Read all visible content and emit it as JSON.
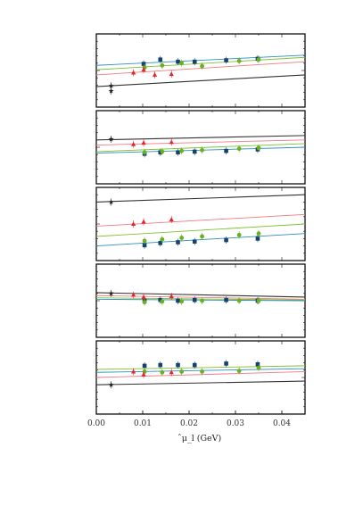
{
  "chart_data": {
    "type": "scatter",
    "xlabel": "̂μ_l (GeV)",
    "x_ticks": [
      "0.00",
      "0.01",
      "0.02",
      "0.03",
      "0.04"
    ],
    "x_tick_values": [
      0,
      0.01,
      0.02,
      0.03,
      0.04
    ],
    "xlim": [
      0,
      0.045
    ],
    "grid": false,
    "colors": {
      "blue": "#16416e",
      "green": "#6ab023",
      "red": "#e8202a",
      "black": "#222222",
      "green_line": "#7fc030",
      "blue_line": "#2b8fbf",
      "red_line": "#f07a80",
      "black_line": "#333333"
    },
    "panels": [
      {
        "ylim": [
          0,
          1
        ],
        "fits": [
          {
            "color": "black_line",
            "y0": 0.28,
            "y1": 0.44
          },
          {
            "color": "red_line",
            "y0": 0.44,
            "y1": 0.62
          },
          {
            "color": "green_line",
            "y0": 0.51,
            "y1": 0.68
          },
          {
            "color": "blue_line",
            "y0": 0.57,
            "y1": 0.71
          }
        ],
        "series": [
          {
            "marker": "square",
            "color": "blue",
            "x": [
              0.0102,
              0.0138,
              0.0176,
              0.0212,
              0.028,
              0.0348
            ],
            "y": [
              0.59,
              0.65,
              0.62,
              0.62,
              0.64,
              0.66
            ]
          },
          {
            "marker": "circle",
            "color": "green",
            "x": [
              0.0104,
              0.0142,
              0.0184,
              0.0228,
              0.0308,
              0.035
            ],
            "y": [
              0.54,
              0.57,
              0.6,
              0.56,
              0.63,
              0.65
            ]
          },
          {
            "marker": "triangle",
            "color": "red",
            "x": [
              0.008,
              0.0102,
              0.0126,
              0.0162
            ],
            "y": [
              0.47,
              0.51,
              0.44,
              0.45
            ]
          },
          {
            "marker": "star",
            "color": "black",
            "x": [
              0.0032,
              0.0032
            ],
            "y": [
              0.29,
              0.22
            ]
          }
        ]
      },
      {
        "ylim": [
          0,
          1
        ],
        "fits": [
          {
            "color": "black_line",
            "y0": 0.6,
            "y1": 0.66
          },
          {
            "color": "red_line",
            "y0": 0.53,
            "y1": 0.6
          },
          {
            "color": "green_line",
            "y0": 0.44,
            "y1": 0.55
          },
          {
            "color": "blue_line",
            "y0": 0.42,
            "y1": 0.5
          }
        ],
        "series": [
          {
            "marker": "square",
            "color": "blue",
            "x": [
              0.0104,
              0.0138,
              0.0176,
              0.0212,
              0.028,
              0.0348
            ],
            "y": [
              0.41,
              0.43,
              0.43,
              0.44,
              0.45,
              0.47
            ]
          },
          {
            "marker": "circle",
            "color": "green",
            "x": [
              0.0104,
              0.0142,
              0.0184,
              0.0228,
              0.0308,
              0.035
            ],
            "y": [
              0.43,
              0.44,
              0.45,
              0.46,
              0.48,
              0.49
            ]
          },
          {
            "marker": "triangle",
            "color": "red",
            "x": [
              0.008,
              0.0102,
              0.0162
            ],
            "y": [
              0.54,
              0.56,
              0.57
            ]
          },
          {
            "marker": "star",
            "color": "black",
            "x": [
              0.0032
            ],
            "y": [
              0.61
            ]
          }
        ]
      },
      {
        "ylim": [
          0,
          1
        ],
        "fits": [
          {
            "color": "black_line",
            "y0": 0.8,
            "y1": 0.9
          },
          {
            "color": "red_line",
            "y0": 0.47,
            "y1": 0.63
          },
          {
            "color": "green_line",
            "y0": 0.33,
            "y1": 0.5
          },
          {
            "color": "blue_line",
            "y0": 0.2,
            "y1": 0.37
          }
        ],
        "series": [
          {
            "marker": "square",
            "color": "blue",
            "x": [
              0.0104,
              0.0138,
              0.0176,
              0.0212,
              0.028,
              0.0348
            ],
            "y": [
              0.21,
              0.24,
              0.25,
              0.26,
              0.28,
              0.3
            ]
          },
          {
            "marker": "circle",
            "color": "green",
            "x": [
              0.0104,
              0.0142,
              0.0184,
              0.0228,
              0.0308,
              0.035
            ],
            "y": [
              0.27,
              0.29,
              0.31,
              0.33,
              0.35,
              0.37
            ]
          },
          {
            "marker": "triangle",
            "color": "red",
            "x": [
              0.008,
              0.0102,
              0.0162
            ],
            "y": [
              0.5,
              0.53,
              0.56
            ]
          },
          {
            "marker": "star",
            "color": "black",
            "x": [
              0.0032
            ],
            "y": [
              0.8
            ]
          }
        ]
      },
      {
        "ylim": [
          0,
          1
        ],
        "fits": [
          {
            "color": "black_line",
            "y0": 0.61,
            "y1": 0.55
          },
          {
            "color": "red_line",
            "y0": 0.57,
            "y1": 0.52
          },
          {
            "color": "green_line",
            "y0": 0.54,
            "y1": 0.51
          },
          {
            "color": "blue_line",
            "y0": 0.52,
            "y1": 0.5
          }
        ],
        "series": [
          {
            "marker": "square",
            "color": "blue",
            "x": [
              0.0104,
              0.0138,
              0.0176,
              0.0212,
              0.028,
              0.0348
            ],
            "y": [
              0.5,
              0.51,
              0.5,
              0.51,
              0.51,
              0.5
            ]
          },
          {
            "marker": "circle",
            "color": "green",
            "x": [
              0.0104,
              0.0142,
              0.0184,
              0.0228,
              0.0308,
              0.035
            ],
            "y": [
              0.48,
              0.49,
              0.49,
              0.5,
              0.5,
              0.5
            ]
          },
          {
            "marker": "triangle",
            "color": "red",
            "x": [
              0.008,
              0.0102,
              0.0162
            ],
            "y": [
              0.58,
              0.55,
              0.56
            ]
          },
          {
            "marker": "star",
            "color": "black",
            "x": [
              0.0032
            ],
            "y": [
              0.6
            ]
          }
        ]
      },
      {
        "ylim": [
          0,
          1
        ],
        "fits": [
          {
            "color": "green_line",
            "y0": 0.61,
            "y1": 0.66
          },
          {
            "color": "blue_line",
            "y0": 0.57,
            "y1": 0.62
          },
          {
            "color": "red_line",
            "y0": 0.5,
            "y1": 0.58
          },
          {
            "color": "black_line",
            "y0": 0.4,
            "y1": 0.45
          }
        ],
        "series": [
          {
            "marker": "square",
            "color": "blue",
            "x": [
              0.0104,
              0.0138,
              0.0176,
              0.0212,
              0.028,
              0.0348
            ],
            "y": [
              0.66,
              0.67,
              0.67,
              0.67,
              0.69,
              0.68
            ]
          },
          {
            "marker": "circle",
            "color": "green",
            "x": [
              0.0104,
              0.0142,
              0.0184,
              0.0228,
              0.0308,
              0.035
            ],
            "y": [
              0.58,
              0.57,
              0.58,
              0.58,
              0.59,
              0.63
            ]
          },
          {
            "marker": "triangle",
            "color": "red",
            "x": [
              0.008,
              0.0102,
              0.0162
            ],
            "y": [
              0.58,
              0.54,
              0.57
            ]
          },
          {
            "marker": "star",
            "color": "black",
            "x": [
              0.0032
            ],
            "y": [
              0.4
            ]
          }
        ]
      }
    ]
  }
}
